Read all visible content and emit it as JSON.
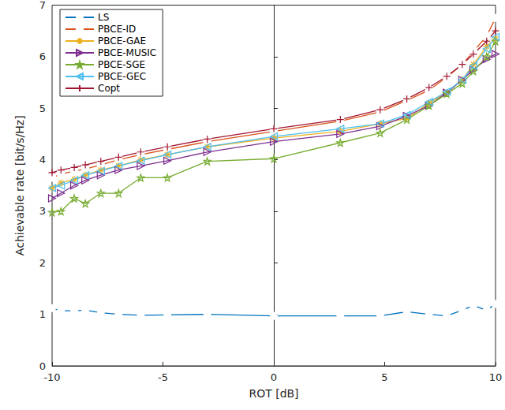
{
  "chart_data": {
    "type": "line",
    "x_label": "ROT [dB]",
    "y_label": "Achievable rate [bit/s/Hz]",
    "x": [
      -10,
      -9.6,
      -9,
      -8.5,
      -7.8,
      -7,
      -6,
      -4.8,
      -3,
      0,
      3,
      4.8,
      6,
      7,
      7.8,
      8.5,
      9,
      9.6,
      10
    ],
    "series": [
      {
        "name": "LS",
        "color": "#0072BD",
        "marker": "circle",
        "values": [
          1.12,
          1.07,
          1.07,
          1.08,
          1.03,
          1.0,
          0.98,
          0.99,
          1.0,
          0.97,
          0.97,
          0.97,
          1.05,
          1.0,
          0.97,
          1.08,
          1.17,
          1.08,
          1.2
        ]
      },
      {
        "name": "PBCE-ID",
        "color": "#D95319",
        "marker": "square",
        "values": [
          3.65,
          3.72,
          3.78,
          3.82,
          3.9,
          4.0,
          4.1,
          4.2,
          4.35,
          4.55,
          4.75,
          4.93,
          5.15,
          5.35,
          5.6,
          5.85,
          6.1,
          6.4,
          6.75
        ]
      },
      {
        "name": "PBCE-GAE",
        "color": "#EDB120",
        "marker": "asterisk",
        "values": [
          3.45,
          3.55,
          3.62,
          3.7,
          3.8,
          3.88,
          4.0,
          4.1,
          4.25,
          4.42,
          4.55,
          4.7,
          4.8,
          5.1,
          5.3,
          5.55,
          5.85,
          6.2,
          6.35
        ]
      },
      {
        "name": "PBCE-MUSIC",
        "color": "#7E2F8E",
        "marker": "triangle-right",
        "values": [
          3.25,
          3.35,
          3.5,
          3.6,
          3.7,
          3.8,
          3.88,
          3.98,
          4.15,
          4.35,
          4.5,
          4.65,
          4.85,
          5.05,
          5.3,
          5.55,
          5.75,
          5.95,
          6.05
        ]
      },
      {
        "name": "PBCE-SGE",
        "color": "#77AC30",
        "marker": "star",
        "values": [
          2.98,
          3.0,
          3.25,
          3.15,
          3.35,
          3.35,
          3.65,
          3.65,
          3.97,
          4.02,
          4.33,
          4.52,
          4.78,
          5.05,
          5.28,
          5.48,
          5.72,
          6.0,
          6.3
        ]
      },
      {
        "name": "PBCE-GEC",
        "color": "#4DBEEE",
        "marker": "triangle-left",
        "values": [
          3.45,
          3.5,
          3.6,
          3.7,
          3.78,
          3.88,
          3.98,
          4.1,
          4.25,
          4.45,
          4.6,
          4.7,
          4.87,
          5.12,
          5.32,
          5.55,
          5.82,
          6.15,
          6.38
        ]
      },
      {
        "name": "Copt",
        "color": "#A2142F",
        "marker": "plus",
        "values": [
          3.75,
          3.8,
          3.85,
          3.9,
          3.97,
          4.05,
          4.15,
          4.25,
          4.4,
          4.6,
          4.78,
          4.97,
          5.18,
          5.4,
          5.62,
          5.85,
          6.05,
          6.3,
          6.5
        ]
      }
    ],
    "xlim": [
      -10,
      10
    ],
    "xticks": [
      -10,
      -5,
      0,
      5,
      10
    ],
    "ylim": [
      0,
      7
    ],
    "yticks": [
      0,
      1,
      2,
      3,
      4,
      5,
      6,
      7
    ],
    "grid": false,
    "legend": "top-left"
  }
}
